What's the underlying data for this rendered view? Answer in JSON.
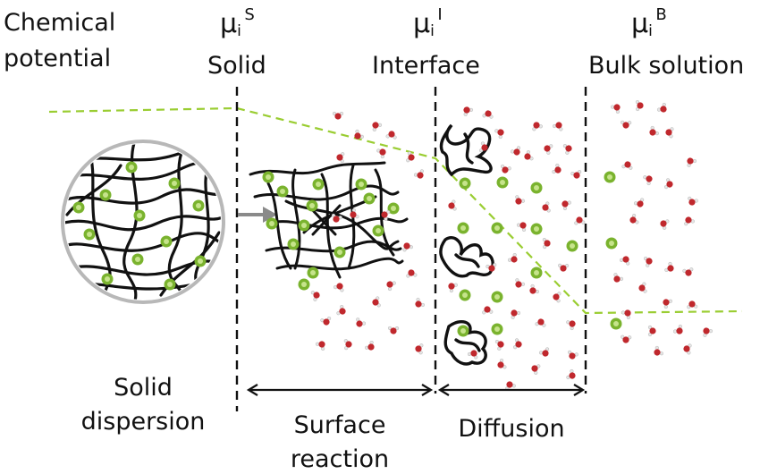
{
  "potential_label": {
    "line1": "Chemical",
    "line2": "potential"
  },
  "regions": {
    "solid": {
      "mu": "μ",
      "sub": "i",
      "sup": "S",
      "label": "Solid"
    },
    "interface": {
      "mu": "μ",
      "sub": "i",
      "sup": "I",
      "label": "Interface"
    },
    "bulk": {
      "mu": "μ",
      "sub": "i",
      "sup": "B",
      "label": "Bulk solution"
    }
  },
  "bottom_labels": {
    "solid_dispersion": {
      "line1": "Solid",
      "line2": "dispersion"
    },
    "surface_reaction": {
      "line1": "Surface",
      "line2": "reaction"
    },
    "diffusion": "Diffusion"
  },
  "colors": {
    "potential_line": "#9acd32",
    "particle_green": "#7ab32e",
    "particle_green_light": "#c6e48b",
    "water_red": "#c0282d",
    "polymer": "#111111",
    "boundary": "#111111",
    "arrow_gray": "#8a8a8a",
    "circle_border": "#b8b8b8"
  }
}
